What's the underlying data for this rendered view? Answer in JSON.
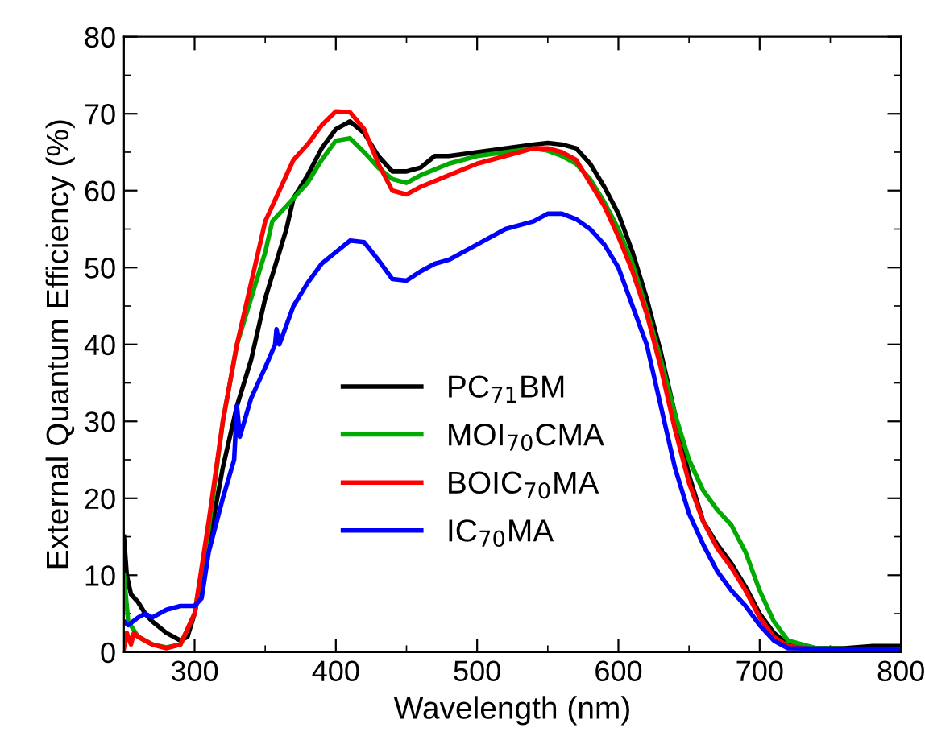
{
  "chart_data": {
    "type": "line",
    "xlabel": "Wavelength (nm)",
    "ylabel": "External Quantum Efficiency (%)",
    "xlim": [
      250,
      800
    ],
    "xticks": [
      300,
      400,
      500,
      600,
      700,
      800
    ],
    "ylim": [
      0,
      80
    ],
    "yticks": [
      0,
      10,
      20,
      30,
      40,
      50,
      60,
      70,
      80
    ],
    "grid": false,
    "legend": "center",
    "marker": "none",
    "line_style": "solid",
    "series": [
      {
        "name": "PC$_{71}$BM",
        "color": "#000000",
        "x": [
          250,
          252,
          255,
          260,
          265,
          270,
          280,
          290,
          295,
          300,
          310,
          320,
          330,
          340,
          350,
          360,
          365,
          370,
          380,
          390,
          400,
          410,
          420,
          430,
          440,
          450,
          460,
          470,
          480,
          500,
          520,
          540,
          550,
          560,
          570,
          580,
          590,
          600,
          610,
          620,
          630,
          640,
          650,
          660,
          670,
          680,
          690,
          700,
          710,
          720,
          740,
          760,
          780,
          800
        ],
        "values": [
          15,
          10,
          7.5,
          6.5,
          5,
          4,
          2.5,
          1.5,
          2,
          5,
          14,
          24,
          32,
          38,
          46,
          52,
          55,
          59,
          62,
          65.5,
          68,
          69,
          67.5,
          64.5,
          62.5,
          62.5,
          63,
          64.5,
          64.5,
          65,
          65.5,
          66,
          66.2,
          66,
          65.5,
          63.5,
          60.5,
          57,
          52,
          46,
          39,
          31,
          23,
          17,
          14,
          11.5,
          8.5,
          5,
          2.5,
          1,
          0.5,
          0.5,
          0.8,
          0.8
        ]
      },
      {
        "name": "MOI$_{70}$CMA",
        "color": "#00aa00",
        "x": [
          250,
          253,
          260,
          270,
          280,
          290,
          300,
          310,
          320,
          330,
          340,
          350,
          355,
          360,
          370,
          380,
          390,
          400,
          410,
          420,
          430,
          440,
          450,
          460,
          480,
          500,
          520,
          540,
          550,
          560,
          570,
          580,
          590,
          600,
          610,
          620,
          630,
          640,
          650,
          660,
          670,
          680,
          690,
          700,
          710,
          720,
          740,
          800
        ],
        "values": [
          10,
          4,
          2,
          1,
          0.6,
          1,
          5,
          16,
          30,
          40,
          46,
          52,
          56,
          57,
          59,
          61,
          64,
          66.5,
          66.8,
          65,
          63,
          61.5,
          61,
          62,
          63.5,
          64.5,
          65,
          65.5,
          65.2,
          64.5,
          63.5,
          61.5,
          58.5,
          55,
          50.5,
          44.5,
          38,
          31,
          25,
          21,
          18.5,
          16.5,
          13,
          8,
          4,
          1.5,
          0.5,
          0.3
        ]
      },
      {
        "name": "BOIC$_{70}$MA",
        "color": "#ff0000",
        "x": [
          250,
          252,
          255,
          257,
          260,
          270,
          280,
          290,
          300,
          310,
          320,
          330,
          340,
          350,
          360,
          370,
          380,
          390,
          400,
          410,
          420,
          430,
          440,
          450,
          460,
          480,
          500,
          520,
          540,
          550,
          560,
          570,
          580,
          590,
          600,
          610,
          620,
          630,
          640,
          650,
          660,
          670,
          680,
          690,
          700,
          710,
          720,
          740
        ],
        "values": [
          0.5,
          2.5,
          1,
          2.5,
          2,
          1,
          0.5,
          1,
          5,
          17,
          30,
          40,
          48,
          56,
          60,
          64,
          66,
          68.5,
          70.3,
          70.2,
          68,
          63.5,
          60,
          59.5,
          60.5,
          62,
          63.5,
          64.5,
          65.5,
          65.5,
          65,
          64,
          61,
          58,
          54,
          49.5,
          44,
          37,
          29,
          22,
          17,
          13.5,
          11,
          8,
          4.5,
          2,
          0.8,
          0.3
        ]
      },
      {
        "name": "IC$_{70}$MA",
        "color": "#0000ff",
        "x": [
          250,
          253,
          260,
          265,
          270,
          280,
          290,
          300,
          305,
          310,
          320,
          328,
          330,
          332,
          340,
          350,
          357,
          358,
          360,
          370,
          380,
          390,
          400,
          410,
          420,
          430,
          440,
          450,
          460,
          470,
          480,
          500,
          520,
          540,
          550,
          560,
          570,
          580,
          590,
          600,
          610,
          620,
          630,
          640,
          650,
          660,
          670,
          680,
          690,
          700,
          710,
          720,
          800
        ],
        "values": [
          4,
          3.5,
          4.5,
          5,
          4.5,
          5.5,
          6,
          6,
          7,
          13,
          20,
          25,
          32,
          28,
          33,
          37,
          40,
          42,
          40,
          45,
          48,
          50.5,
          52,
          53.5,
          53.3,
          51,
          48.5,
          48.3,
          49.5,
          50.5,
          51,
          53,
          55,
          56,
          57,
          57,
          56.3,
          55,
          53,
          50,
          45,
          40,
          32,
          24,
          18,
          14,
          10.5,
          8,
          6,
          3.5,
          1.5,
          0.5,
          0.3
        ]
      }
    ]
  }
}
